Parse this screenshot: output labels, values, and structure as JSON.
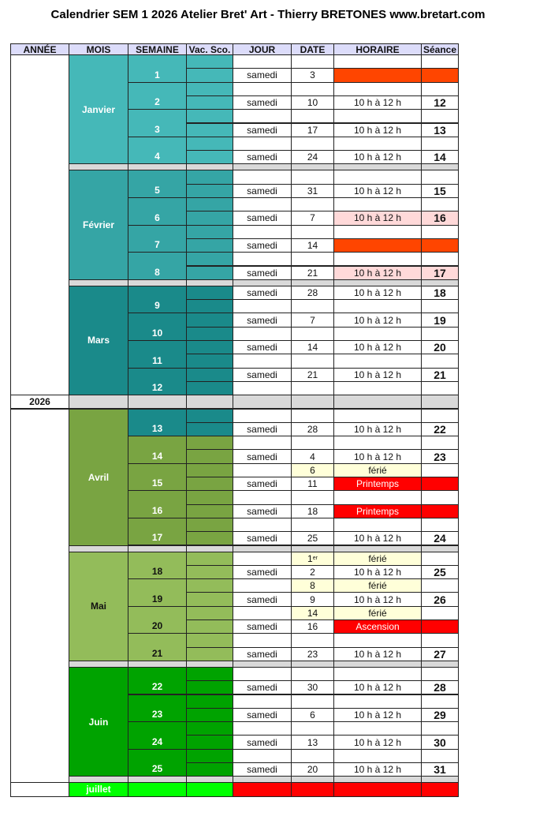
{
  "title": "Calendrier SEM 1 2026 Atelier Bret' Art - Thierry BRETONES www.bretart.com",
  "headers": [
    "ANNÉE",
    "MOIS",
    "SEMAINE",
    "Vac. Sco.",
    "JOUR",
    "DATE",
    "HORAIRE",
    "Séance"
  ],
  "colors": {
    "header": "#dcdcfa",
    "separator": "#d9d9d9",
    "closed": "#ff4500",
    "holiday": "#ff0000",
    "pink": "#ffd9d9",
    "ferie": "#ffffd9",
    "july_right": "#ff0000"
  },
  "sections": [
    {
      "type": "month",
      "name": "Janvier",
      "color": "#45b8b8",
      "text": "#ffffff",
      "weeks": [
        {
          "num": "1",
          "rows": [
            {},
            {
              "jour": "samedi",
              "date": "3",
              "style": "closed"
            }
          ]
        },
        {
          "num": "2",
          "rows": [
            {},
            {
              "jour": "samedi",
              "date": "10",
              "horaire": "10 h à 12 h",
              "seance": "12"
            }
          ]
        },
        {
          "num": "3",
          "rows": [
            {},
            {
              "jour": "samedi",
              "date": "17",
              "horaire": "10 h à 12 h",
              "seance": "13"
            }
          ]
        },
        {
          "num": "4",
          "rows": [
            {},
            {
              "jour": "samedi",
              "date": "24",
              "horaire": "10 h à 12 h",
              "seance": "14"
            }
          ]
        }
      ]
    },
    {
      "type": "sep"
    },
    {
      "type": "month",
      "name": "Février",
      "color": "#35a5a5",
      "text": "#ffffff",
      "weeks": [
        {
          "num": "5",
          "rows": [
            {},
            {
              "jour": "samedi",
              "date": "31",
              "horaire": "10 h à 12 h",
              "seance": "15"
            }
          ]
        },
        {
          "num": "6",
          "rows": [
            {},
            {
              "jour": "samedi",
              "date": "7",
              "horaire": "10 h à 12 h",
              "seance": "16",
              "style": "pink"
            }
          ]
        },
        {
          "num": "7",
          "rows": [
            {},
            {
              "jour": "samedi",
              "date": "14",
              "style": "closed"
            }
          ]
        },
        {
          "num": "8",
          "rows": [
            {},
            {
              "jour": "samedi",
              "date": "21",
              "horaire": "10 h à 12 h",
              "seance": "17",
              "style": "pink"
            }
          ]
        }
      ]
    },
    {
      "type": "sep"
    },
    {
      "type": "month",
      "name": "Mars",
      "color": "#1a8a8a",
      "text": "#ffffff",
      "weeks": [
        {
          "num": "9",
          "rows": [
            {
              "jour": "samedi",
              "date": "28",
              "horaire": "10 h à 12 h",
              "seance": "18"
            },
            {}
          ]
        },
        {
          "num": "10",
          "rows": [
            {
              "jour": "samedi",
              "date": "7",
              "horaire": "10 h à 12 h",
              "seance": "19"
            },
            {}
          ]
        },
        {
          "num": "11",
          "rows": [
            {
              "jour": "samedi",
              "date": "14",
              "horaire": "10 h à 12 h",
              "seance": "20"
            },
            {}
          ]
        },
        {
          "num": "12",
          "rows": [
            {
              "jour": "samedi",
              "date": "21",
              "horaire": "10 h à 12 h",
              "seance": "21"
            },
            {}
          ]
        }
      ]
    },
    {
      "type": "year",
      "label": "2026"
    },
    {
      "type": "month",
      "name": "Avril",
      "color": "#79a442",
      "text": "#ffffff",
      "weeks": [
        {
          "num": "13",
          "color": "#1a8a8a",
          "rows": [
            {},
            {
              "jour": "samedi",
              "date": "28",
              "horaire": "10 h à 12 h",
              "seance": "22"
            }
          ]
        },
        {
          "num": "14",
          "rows": [
            {},
            {
              "jour": "samedi",
              "date": "4",
              "horaire": "10 h à 12 h",
              "seance": "23"
            }
          ]
        },
        {
          "num": "15",
          "rows": [
            {
              "date": "6",
              "horaire": "férié",
              "style": "ferie"
            },
            {
              "jour": "samedi",
              "date": "11",
              "horaire": "Printemps",
              "style": "holiday"
            }
          ]
        },
        {
          "num": "16",
          "rows": [
            {},
            {
              "jour": "samedi",
              "date": "18",
              "horaire": "Printemps",
              "style": "holiday"
            }
          ]
        },
        {
          "num": "17",
          "rows": [
            {},
            {
              "jour": "samedi",
              "date": "25",
              "horaire": "10 h à 12 h",
              "seance": "24"
            }
          ]
        }
      ]
    },
    {
      "type": "sep"
    },
    {
      "type": "month",
      "name": "Mai",
      "color": "#93bc5a",
      "text": "#111111",
      "weeks": [
        {
          "num": "18",
          "rows": [
            {
              "date": "1",
              "date_sup": "er",
              "horaire": "férié",
              "style": "ferie"
            },
            {
              "jour": "samedi",
              "date": "2",
              "horaire": "10 h à 12 h",
              "seance": "25"
            }
          ]
        },
        {
          "num": "19",
          "rows": [
            {
              "date": "8",
              "horaire": "férié",
              "style": "ferie"
            },
            {
              "jour": "samedi",
              "date": "9",
              "horaire": "10 h à 12 h",
              "seance": "26"
            }
          ]
        },
        {
          "num": "20",
          "rows": [
            {
              "date": "14",
              "horaire": "férié",
              "style": "ferie"
            },
            {
              "jour": "samedi",
              "date": "16",
              "horaire": "Ascension",
              "style": "holiday"
            }
          ]
        },
        {
          "num": "21",
          "rows": [
            {},
            {
              "jour": "samedi",
              "date": "23",
              "horaire": "10 h à 12 h",
              "seance": "27"
            }
          ]
        }
      ]
    },
    {
      "type": "sep"
    },
    {
      "type": "month",
      "name": "Juin",
      "color": "#00a300",
      "text": "#ffffff",
      "weeks": [
        {
          "num": "22",
          "rows": [
            {},
            {
              "jour": "samedi",
              "date": "30",
              "horaire": "10 h à 12 h",
              "seance": "28"
            }
          ]
        },
        {
          "num": "23",
          "rows": [
            {},
            {
              "jour": "samedi",
              "date": "6",
              "horaire": "10 h à 12 h",
              "seance": "29"
            }
          ]
        },
        {
          "num": "24",
          "rows": [
            {},
            {
              "jour": "samedi",
              "date": "13",
              "horaire": "10 h à 12 h",
              "seance": "30"
            }
          ]
        },
        {
          "num": "25",
          "rows": [
            {},
            {
              "jour": "samedi",
              "date": "20",
              "horaire": "10 h à 12 h",
              "seance": "31"
            }
          ]
        }
      ]
    },
    {
      "type": "sep"
    },
    {
      "type": "tail",
      "name": "juillet",
      "color": "#00ff00",
      "text": "#ffffff"
    }
  ]
}
